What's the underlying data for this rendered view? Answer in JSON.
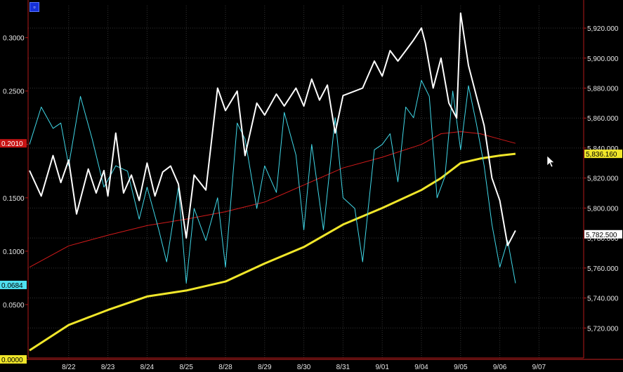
{
  "colors": {
    "background": "#000000",
    "grid": "#343434",
    "axis": "#b41a1a",
    "price": "#ffffff",
    "indicator": "#40d8e8",
    "ma_short": "#d21a1a",
    "ma_long": "#f0e62a"
  },
  "badge_icon": "square-window-icon",
  "cursor_icon": "mouse-pointer-icon",
  "chart_data": {
    "type": "line",
    "title": "",
    "xlabel": "",
    "ylabel": "",
    "grid": true,
    "legend": "none",
    "x_ticks": [
      "8/22",
      "8/23",
      "8/24",
      "8/25",
      "8/28",
      "8/29",
      "8/30",
      "8/31",
      "9/01",
      "9/04",
      "9/05",
      "9/06",
      "9/07"
    ],
    "left_axis": {
      "ylim": [
        0.0,
        0.33
      ],
      "ticks": [
        "0.0500",
        "0.1000",
        "0.1500",
        "0.2000",
        "0.2500",
        "0.3000"
      ]
    },
    "right_axis": {
      "ylim": [
        5700,
        5935
      ],
      "ticks": [
        "5,720.000",
        "5,740.000",
        "5,760.000",
        "5,780.000",
        "5,800.000",
        "5,820.000",
        "5,840.000",
        "5,860.000",
        "5,880.000",
        "5,900.000",
        "5,920.000"
      ]
    },
    "value_tags": {
      "ma_short": "0.2010",
      "indicator": "0.0684",
      "zero": "0.0000",
      "ma_long": "5,836.160",
      "price": "5,782.500"
    },
    "series": [
      {
        "key": "price",
        "axis": "right",
        "x": [
          0.0,
          0.3,
          0.6,
          0.8,
          1.0,
          1.2,
          1.5,
          1.7,
          1.9,
          2.0,
          2.2,
          2.4,
          2.6,
          2.8,
          3.0,
          3.2,
          3.4,
          3.6,
          3.8,
          4.0,
          4.2,
          4.5,
          4.8,
          5.0,
          5.3,
          5.5,
          5.8,
          6.0,
          6.3,
          6.5,
          6.8,
          7.0,
          7.2,
          7.4,
          7.6,
          7.8,
          8.0,
          8.3,
          8.5,
          8.8,
          9.0,
          9.2,
          9.4,
          9.6,
          9.8,
          10.0,
          10.1,
          10.3,
          10.5,
          10.7,
          10.9,
          11.0,
          11.2,
          11.4,
          11.6,
          11.8,
          12.0,
          12.2,
          12.4
        ],
        "values": [
          5825,
          5808,
          5835,
          5817,
          5832,
          5796,
          5826,
          5810,
          5825,
          5808,
          5850,
          5810,
          5822,
          5805,
          5830,
          5808,
          5824,
          5828,
          5816,
          5780,
          5822,
          5812,
          5880,
          5865,
          5878,
          5835,
          5870,
          5862,
          5876,
          5868,
          5880,
          5868,
          5886,
          5872,
          5882,
          5850,
          5875,
          5878,
          5880,
          5898,
          5888,
          5905,
          5898,
          5905,
          5912,
          5920,
          5910,
          5880,
          5900,
          5870,
          5860,
          5930,
          5895,
          5875,
          5855,
          5820,
          5805,
          5775,
          5785
        ]
      },
      {
        "key": "indicator",
        "axis": "left",
        "x": [
          0.0,
          0.3,
          0.6,
          0.8,
          1.0,
          1.3,
          1.6,
          1.9,
          2.2,
          2.5,
          2.8,
          3.0,
          3.3,
          3.5,
          3.8,
          4.0,
          4.2,
          4.5,
          4.8,
          5.0,
          5.3,
          5.5,
          5.8,
          6.0,
          6.3,
          6.5,
          6.8,
          7.0,
          7.2,
          7.5,
          7.8,
          8.0,
          8.3,
          8.5,
          8.8,
          9.0,
          9.2,
          9.4,
          9.6,
          9.8,
          10.0,
          10.2,
          10.4,
          10.6,
          10.8,
          11.0,
          11.2,
          11.4,
          11.6,
          11.8,
          12.0,
          12.2,
          12.4
        ],
        "values": [
          0.2,
          0.235,
          0.215,
          0.22,
          0.18,
          0.245,
          0.205,
          0.16,
          0.18,
          0.175,
          0.13,
          0.16,
          0.12,
          0.09,
          0.16,
          0.07,
          0.14,
          0.11,
          0.15,
          0.085,
          0.22,
          0.205,
          0.14,
          0.18,
          0.155,
          0.23,
          0.19,
          0.12,
          0.2,
          0.12,
          0.225,
          0.15,
          0.14,
          0.09,
          0.195,
          0.2,
          0.21,
          0.165,
          0.235,
          0.225,
          0.26,
          0.245,
          0.15,
          0.17,
          0.25,
          0.195,
          0.255,
          0.22,
          0.18,
          0.125,
          0.085,
          0.11,
          0.07
        ]
      },
      {
        "key": "ma_short",
        "axis": "left",
        "x": [
          0.0,
          1.0,
          2.0,
          3.0,
          4.0,
          5.0,
          6.0,
          7.0,
          8.0,
          9.0,
          10.0,
          10.5,
          11.0,
          11.5,
          12.0,
          12.4
        ],
        "values": [
          0.085,
          0.105,
          0.115,
          0.124,
          0.13,
          0.137,
          0.146,
          0.162,
          0.178,
          0.188,
          0.2,
          0.21,
          0.212,
          0.21,
          0.205,
          0.201
        ]
      },
      {
        "key": "ma_long",
        "axis": "right",
        "x": [
          0.0,
          1.0,
          2.0,
          3.0,
          4.0,
          5.0,
          6.0,
          7.0,
          8.0,
          9.0,
          10.0,
          10.5,
          11.0,
          11.5,
          12.0,
          12.4
        ],
        "values": [
          5705,
          5722,
          5732,
          5741,
          5745,
          5751,
          5763,
          5774,
          5789,
          5800,
          5812,
          5820,
          5830,
          5833,
          5835,
          5836.16
        ]
      }
    ]
  }
}
